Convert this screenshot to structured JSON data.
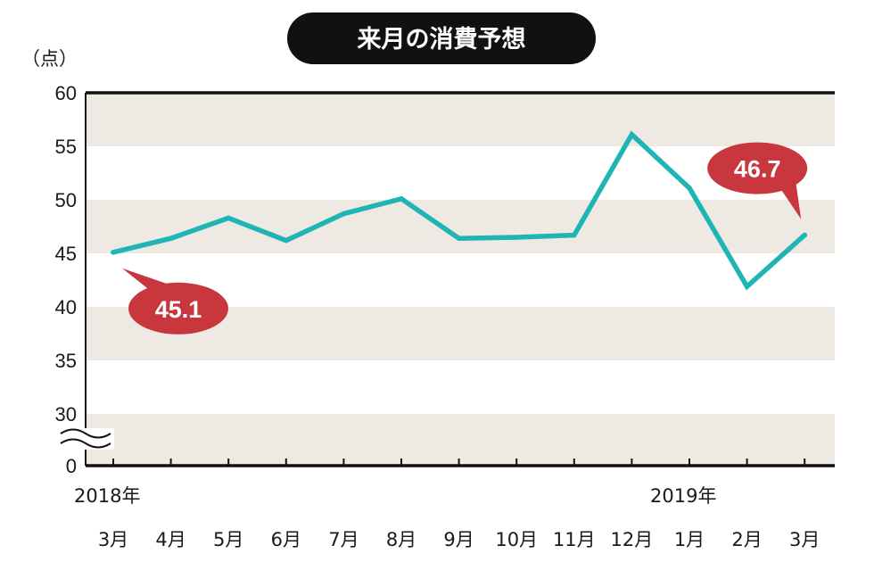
{
  "chart_data": {
    "type": "line",
    "title": "来月の消費予想",
    "ylabel": "（点）",
    "xlabel": "",
    "ylim": [
      30,
      60
    ],
    "y_ticks": [
      "60",
      "55",
      "50",
      "45",
      "40",
      "35",
      "30"
    ],
    "y_tick_values": [
      60,
      55,
      50,
      45,
      40,
      35,
      30
    ],
    "y_break_label": "0",
    "y_break": true,
    "categories": [
      "3月",
      "4月",
      "5月",
      "6月",
      "7月",
      "8月",
      "9月",
      "10月",
      "11月",
      "12月",
      "1月",
      "2月",
      "3月"
    ],
    "year_labels": [
      {
        "label": "2018年",
        "index": 0
      },
      {
        "label": "2019年",
        "index": 10
      }
    ],
    "series": [
      {
        "values": [
          45.1,
          46.4,
          48.3,
          46.2,
          48.7,
          50.1,
          46.4,
          46.5,
          46.7,
          56.1,
          51.1,
          41.9,
          46.7
        ],
        "color": "#1fb5b5"
      }
    ],
    "annotations": [
      {
        "label": "45.1",
        "index": 0,
        "value": 45.1,
        "placement": "below-right"
      },
      {
        "label": "46.7",
        "index": 12,
        "value": 46.7,
        "placement": "above-left"
      }
    ],
    "colors": {
      "band": "#efe9e3",
      "line": "#1fb5b5",
      "callout": "#c8373e",
      "title_bg": "#111111"
    },
    "grid": false,
    "legend": "none"
  }
}
